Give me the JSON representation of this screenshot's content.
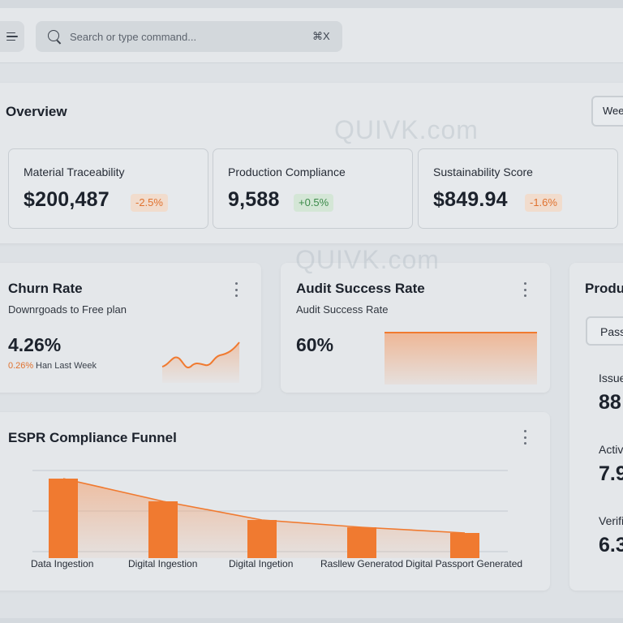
{
  "header": {
    "search_placeholder": "Search or type command...",
    "shortcut": "⌘X"
  },
  "overview": {
    "title": "Overview",
    "period_button": "Wee",
    "kpis": [
      {
        "label": "Material Traceability",
        "value": "$200,487",
        "delta": "-2.5%",
        "trend": "down"
      },
      {
        "label": "Production Compliance",
        "value": "9,588",
        "delta": "+0.5%",
        "trend": "up"
      },
      {
        "label": "Sustainability Score",
        "value": "$849.94",
        "delta": "-1.6%",
        "trend": "down"
      }
    ]
  },
  "watermark": "QUIVK.com",
  "churn": {
    "title": "Churn Rate",
    "subtitle": "Downrgoads to Free plan",
    "value": "4.26%",
    "delta_pct": "0.26%",
    "delta_text": "Han Last Week"
  },
  "audit": {
    "title": "Audit Success Rate",
    "subtitle": "Audit Success Rate",
    "value": "60%"
  },
  "right_panel": {
    "title": "Produ",
    "button": "Pass",
    "metrics": [
      {
        "label": "Issue",
        "value": "88"
      },
      {
        "label": "Activ",
        "value": "7.9"
      },
      {
        "label": "Verifi",
        "value": "6.3"
      }
    ]
  },
  "funnel": {
    "title": "ESPR Compliance Funnel"
  },
  "chart_data": {
    "type": "bar",
    "title": "ESPR Compliance Funnel",
    "categories": [
      "Data Ingestion",
      "Digital Ingestion",
      "Digital Ingetion",
      "Rasllew Generatod",
      "Digital Passport Generated"
    ],
    "values": [
      100,
      72,
      49,
      40,
      33
    ],
    "ylim": [
      0,
      110
    ],
    "grid": true,
    "colors": {
      "bar": "#f07a30",
      "area": "#f2a77a"
    }
  },
  "colors": {
    "accent": "#f07a30",
    "positive": "#3c8b4a",
    "negative": "#e0722f"
  }
}
